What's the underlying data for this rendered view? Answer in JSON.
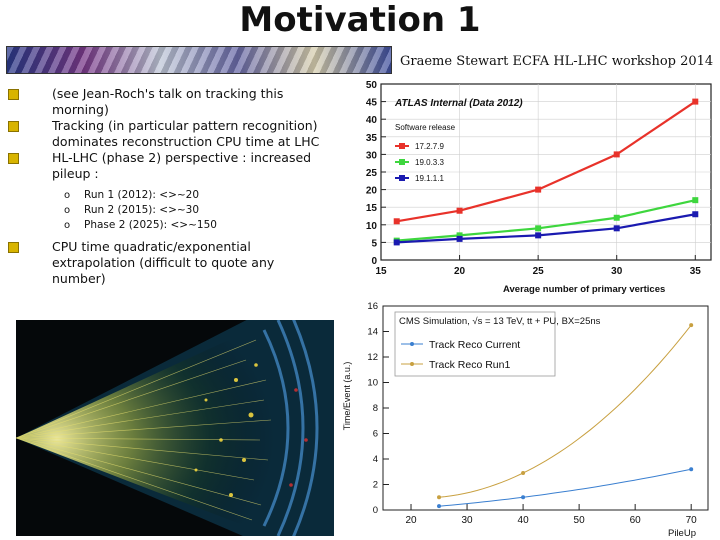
{
  "title": "Motivation 1",
  "credit": "Graeme Stewart ECFA HL-LHC workshop 2014",
  "bullets": [
    {
      "text": "(see Jean-Roch's talk on tracking this morning)"
    },
    {
      "text": "Tracking (in particular pattern recognition) dominates reconstruction CPU time at LHC"
    },
    {
      "text": "HL-LHC (phase 2) perspective : increased pileup :"
    },
    {
      "text": "CPU time quadratic/exponential extrapolation (difficult to quote any number)"
    }
  ],
  "sub_bullets": [
    "Run 1 (2012): <>~20",
    "Run 2 (2015): <>~30",
    "Phase 2 (2025): <>~150"
  ],
  "chart_data": [
    {
      "type": "line",
      "title": "ATLAS Internal (Data 2012)",
      "legend_title": "Software release",
      "xlabel": "Average number of primary vertices",
      "ylabel": "",
      "xlim": [
        15,
        36
      ],
      "ylim": [
        0,
        50
      ],
      "xticks": [
        15,
        20,
        25,
        30,
        35
      ],
      "yticks": [
        0,
        5,
        10,
        15,
        20,
        25,
        30,
        35,
        40,
        45,
        50
      ],
      "x": [
        16,
        20,
        25,
        30,
        35
      ],
      "series": [
        {
          "name": "17.2.7.9",
          "color": "#e8322a",
          "values": [
            11,
            14,
            20,
            30,
            45
          ]
        },
        {
          "name": "19.0.3.3",
          "color": "#3ed63e",
          "values": [
            5.5,
            7,
            9,
            12,
            17
          ]
        },
        {
          "name": "19.1.1.1",
          "color": "#1a1ab0",
          "values": [
            5,
            6,
            7,
            9,
            13
          ]
        }
      ],
      "legend_position": "top-left"
    },
    {
      "type": "line",
      "title": "CMS Simulation, √s = 13 TeV, tt + PU, BX=25ns",
      "xlabel": "PileUp",
      "ylabel": "Time/Event (a.u.)",
      "xlim": [
        15,
        73
      ],
      "ylim": [
        0,
        16
      ],
      "xticks": [
        20,
        30,
        40,
        50,
        60,
        70
      ],
      "yticks": [
        0,
        2,
        4,
        6,
        8,
        10,
        12,
        14,
        16
      ],
      "x": [
        25,
        40,
        70
      ],
      "series": [
        {
          "name": "Track Reco Current",
          "color": "#3a7fd0",
          "values": [
            0.3,
            1.0,
            3.2
          ]
        },
        {
          "name": "Track Reco Run1",
          "color": "#c8a040",
          "values": [
            1.0,
            2.9,
            14.5
          ]
        }
      ],
      "legend_position": "top-left"
    }
  ]
}
